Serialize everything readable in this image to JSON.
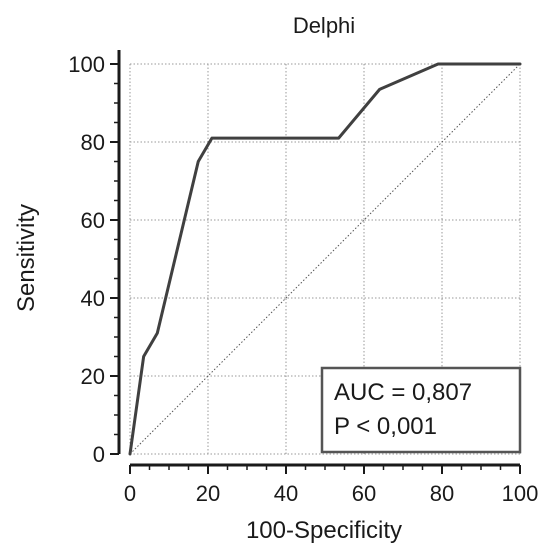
{
  "chart_data": {
    "type": "line",
    "title": "Delphi",
    "xlabel": "100-Specificity",
    "ylabel": "Sensitivity",
    "xlim": [
      0,
      100
    ],
    "ylim": [
      0,
      100
    ],
    "xticks": [
      "0",
      "20",
      "40",
      "60",
      "80",
      "100"
    ],
    "yticks": [
      "0",
      "20",
      "40",
      "60",
      "80",
      "100"
    ],
    "grid": true,
    "series": [
      {
        "x": [
          0,
          3.5,
          7,
          17.5,
          21,
          53.5,
          64,
          79,
          100
        ],
        "y": [
          0,
          25,
          31,
          75,
          81,
          81,
          93.5,
          100,
          100
        ]
      }
    ],
    "reference_line": {
      "x": [
        0,
        100
      ],
      "y": [
        0,
        100
      ],
      "style": "dotted"
    },
    "annotations": {
      "auc": "AUC = 0,807",
      "p": "P < 0,001"
    },
    "colors": {
      "curve": "#404040",
      "grid": "#9a9a9a",
      "axis": "#1a1a1a",
      "annotation_border": "#555555"
    }
  }
}
